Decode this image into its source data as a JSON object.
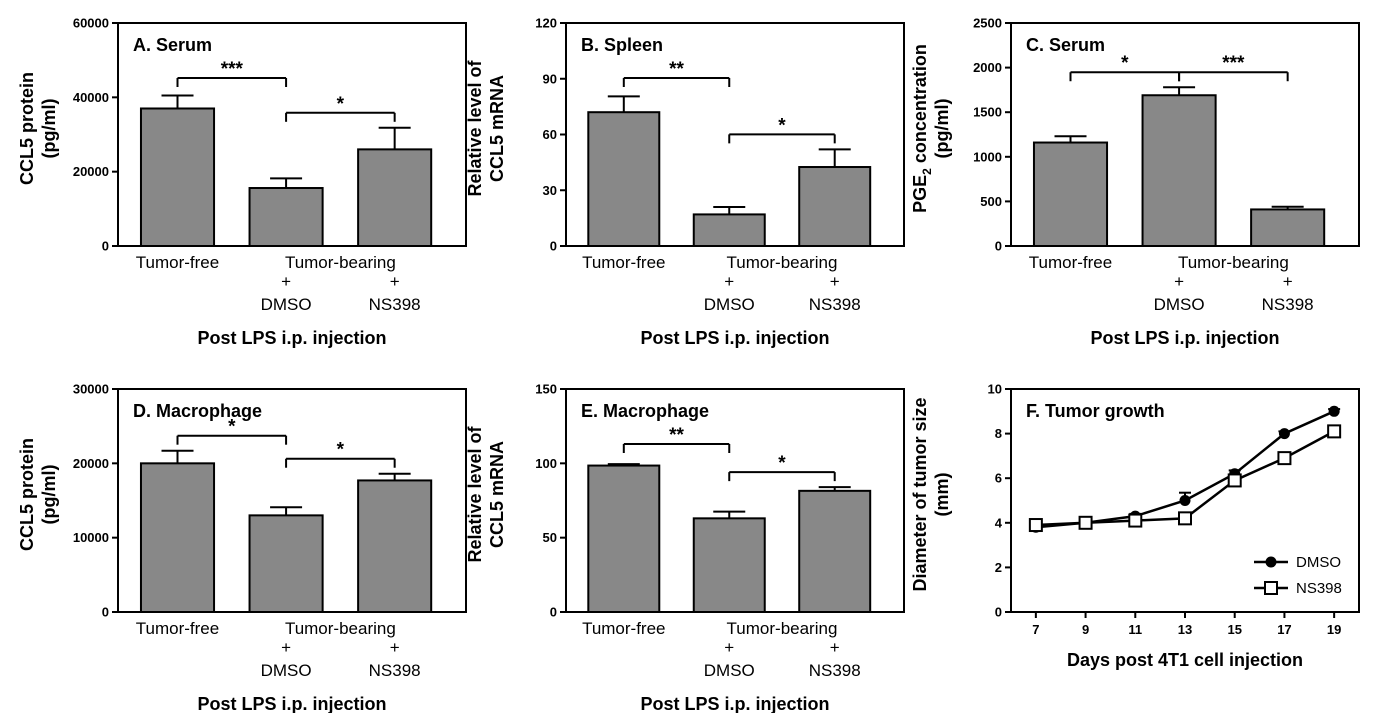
{
  "chart_data": [
    {
      "id": "A",
      "type": "bar",
      "title": "A. Serum",
      "ylabel_lines": [
        "CCL5 protein",
        "(pg/ml)"
      ],
      "xlabel": "Post LPS i.p. injection",
      "ylim": [
        0,
        60000
      ],
      "yticks": [
        "0",
        "20000",
        "40000",
        "60000"
      ],
      "categories": [
        {
          "top": "Tumor-free",
          "mid": "",
          "bottom": ""
        },
        {
          "top": "",
          "mid": "+",
          "bottom": "DMSO"
        },
        {
          "top": "",
          "mid": "+",
          "bottom": "NS398"
        }
      ],
      "group_label": "Tumor-bearing",
      "values": [
        37000,
        15600,
        26000
      ],
      "errors": [
        3500,
        2600,
        5800
      ],
      "significance": [
        {
          "from": 0,
          "to": 1,
          "label": "***"
        },
        {
          "from": 1,
          "to": 2,
          "label": "*"
        }
      ]
    },
    {
      "id": "B",
      "type": "bar",
      "title": "B. Spleen",
      "ylabel_lines": [
        "Relative level of",
        "CCL5 mRNA"
      ],
      "xlabel": "Post LPS i.p. injection",
      "ylim": [
        0,
        120
      ],
      "yticks": [
        "0",
        "30",
        "60",
        "90",
        "120"
      ],
      "categories": [
        {
          "top": "Tumor-free",
          "mid": "",
          "bottom": ""
        },
        {
          "top": "",
          "mid": "+",
          "bottom": "DMSO"
        },
        {
          "top": "",
          "mid": "+",
          "bottom": "NS398"
        }
      ],
      "group_label": "Tumor-bearing",
      "values": [
        72,
        17,
        42.5
      ],
      "errors": [
        8.5,
        4,
        9.5
      ],
      "significance": [
        {
          "from": 0,
          "to": 1,
          "label": "**"
        },
        {
          "from": 1,
          "to": 2,
          "label": "*"
        }
      ]
    },
    {
      "id": "C",
      "type": "bar",
      "title": "C. Serum",
      "ylabel_lines": [
        "PGE",
        "2",
        " concentration",
        "(pg/ml)"
      ],
      "xlabel": "Post LPS i.p. injection",
      "ylim": [
        0,
        2500
      ],
      "yticks": [
        "0",
        "500",
        "1000",
        "1500",
        "2000",
        "2500"
      ],
      "categories": [
        {
          "top": "Tumor-free",
          "mid": "",
          "bottom": ""
        },
        {
          "top": "",
          "mid": "+",
          "bottom": "DMSO"
        },
        {
          "top": "",
          "mid": "+",
          "bottom": "NS398"
        }
      ],
      "group_label": "Tumor-bearing",
      "values": [
        1160,
        1690,
        410
      ],
      "errors": [
        70,
        90,
        30
      ],
      "significance": [
        {
          "from": 0,
          "to": 1,
          "label": "*"
        },
        {
          "from": 1,
          "to": 2,
          "label": "***"
        }
      ]
    },
    {
      "id": "D",
      "type": "bar",
      "title": "D. Macrophage",
      "ylabel_lines": [
        "CCL5 protein",
        "(pg/ml)"
      ],
      "xlabel": "Post LPS i.p. injection",
      "ylim": [
        0,
        30000
      ],
      "yticks": [
        "0",
        "10000",
        "20000",
        "30000"
      ],
      "categories": [
        {
          "top": "Tumor-free",
          "mid": "",
          "bottom": ""
        },
        {
          "top": "",
          "mid": "+",
          "bottom": "DMSO"
        },
        {
          "top": "",
          "mid": "+",
          "bottom": "NS398"
        }
      ],
      "group_label": "Tumor-bearing",
      "values": [
        20000,
        13000,
        17700
      ],
      "errors": [
        1700,
        1100,
        900
      ],
      "significance": [
        {
          "from": 0,
          "to": 1,
          "label": "*"
        },
        {
          "from": 1,
          "to": 2,
          "label": "*"
        }
      ]
    },
    {
      "id": "E",
      "type": "bar",
      "title": "E. Macrophage",
      "ylabel_lines": [
        "Relative level of",
        "CCL5 mRNA"
      ],
      "xlabel": "Post LPS i.p. injection",
      "ylim": [
        0,
        150
      ],
      "yticks": [
        "0",
        "50",
        "100",
        "150"
      ],
      "categories": [
        {
          "top": "Tumor-free",
          "mid": "",
          "bottom": ""
        },
        {
          "top": "",
          "mid": "+",
          "bottom": "DMSO"
        },
        {
          "top": "",
          "mid": "+",
          "bottom": "NS398"
        }
      ],
      "group_label": "Tumor-bearing",
      "values": [
        98.5,
        63,
        81.5
      ],
      "errors": [
        1,
        4.5,
        2.5
      ],
      "significance": [
        {
          "from": 0,
          "to": 1,
          "label": "**"
        },
        {
          "from": 1,
          "to": 2,
          "label": "*"
        }
      ]
    },
    {
      "id": "F",
      "type": "line",
      "title": "F. Tumor growth",
      "ylabel_lines": [
        "Diameter of tumor size",
        "(mm)"
      ],
      "xlabel": "Days post 4T1 cell injection",
      "ylim": [
        0,
        10
      ],
      "xlim": [
        6,
        20
      ],
      "yticks": [
        "0",
        "2",
        "4",
        "6",
        "8",
        "10"
      ],
      "x": [
        7,
        9,
        11,
        13,
        15,
        17,
        19
      ],
      "xticks": [
        "7",
        "9",
        "11",
        "13",
        "15",
        "17",
        "19"
      ],
      "series": [
        {
          "name": "DMSO",
          "marker": "filled-circle",
          "values": [
            3.8,
            4.0,
            4.3,
            5.0,
            6.2,
            8.0,
            9.0
          ],
          "errors": [
            0.1,
            0.1,
            0.1,
            0.35,
            0.15,
            0.1,
            0.1
          ]
        },
        {
          "name": "NS398",
          "marker": "open-square",
          "values": [
            3.9,
            4.0,
            4.1,
            4.2,
            5.9,
            6.9,
            8.1
          ],
          "errors": [
            0.1,
            0.1,
            0.1,
            0.1,
            0.15,
            0.1,
            0.1
          ]
        }
      ]
    }
  ]
}
